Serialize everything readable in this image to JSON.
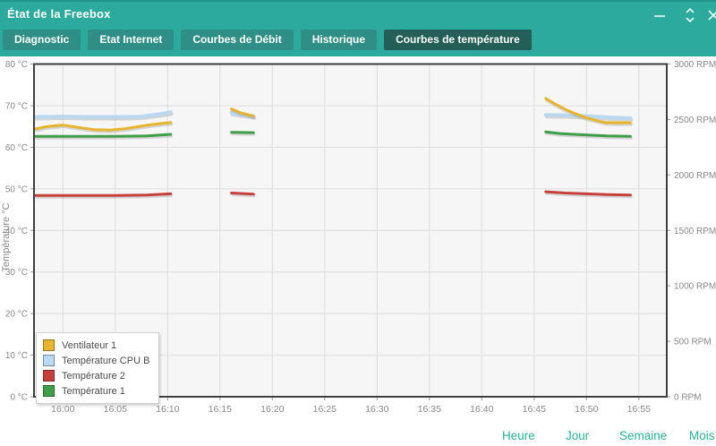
{
  "window": {
    "title": "État de la Freebox",
    "controls": [
      {
        "id": "minimize-icon",
        "glyph": "minus"
      },
      {
        "id": "collapse-expand-icon",
        "glyph": "chevrons-up-down"
      },
      {
        "id": "close-icon",
        "glyph": "cross",
        "partially_visible": true
      }
    ]
  },
  "tabs": [
    {
      "id": "diagnostic",
      "label": "Diagnostic",
      "active": false
    },
    {
      "id": "etat-internet",
      "label": "Etat Internet",
      "active": false
    },
    {
      "id": "courbes-de-debit",
      "label": "Courbes de Débit",
      "active": false
    },
    {
      "id": "historique",
      "label": "Historique",
      "active": false
    },
    {
      "id": "courbes-de-temperature",
      "label": "Courbes de température",
      "active": true
    }
  ],
  "colors": {
    "header_teal": "#2caa9d",
    "tab_inactive": "#2f8f86",
    "tab_active": "#235e57",
    "link_teal": "#2fae9f",
    "plot_background": "#f6f6f6",
    "gridline": "#dcdcdc",
    "plot_border": "#3f3f3f",
    "axis_text": "#8a8a8a"
  },
  "footer": {
    "links": [
      {
        "id": "heure",
        "label": "Heure"
      },
      {
        "id": "jour",
        "label": "Jour"
      },
      {
        "id": "semaine",
        "label": "Semaine"
      },
      {
        "id": "mois",
        "label": "Mois"
      }
    ]
  },
  "chart_data": {
    "type": "line",
    "title": "",
    "x_axis": {
      "unit": "time",
      "tick_labels": [
        "16:00",
        "16:05",
        "16:10",
        "16:15",
        "16:20",
        "16:25",
        "16:30",
        "16:35",
        "16:40",
        "16:45",
        "16:50",
        "16:55"
      ],
      "tick_minutes": [
        0,
        5,
        10,
        15,
        20,
        25,
        30,
        35,
        40,
        45,
        50,
        55
      ],
      "range_minutes": [
        -2.8,
        57.7
      ]
    },
    "y_left": {
      "label": "Température °C",
      "min": 0,
      "max": 80,
      "step": 10,
      "tick_suffix": " °C",
      "tick_labels": [
        "0 °C",
        "10 °C",
        "20 °C",
        "30 °C",
        "40 °C",
        "50 °C",
        "60 °C",
        "70 °C",
        "80 °C"
      ]
    },
    "y_right": {
      "label": "RPM",
      "min": 0,
      "max": 3000,
      "step": 500,
      "tick_suffix": " RPM",
      "tick_labels": [
        "0 RPM",
        "500 RPM",
        "1000 RPM",
        "1500 RPM",
        "2000 RPM",
        "2500 RPM",
        "3000 RPM"
      ]
    },
    "grid": {
      "vertical": true,
      "horizontal": true
    },
    "draw_order": [
      1,
      3,
      2,
      0
    ],
    "series": [
      {
        "name": "Ventilateur 1",
        "color": "#e7b42f",
        "axis": "right",
        "unit": "RPM",
        "width": 3,
        "segments": [
          [
            [
              -2.6,
              2415
            ],
            [
              -1.5,
              2437
            ],
            [
              0,
              2450
            ],
            [
              1.5,
              2428
            ],
            [
              3,
              2408
            ],
            [
              4.5,
              2405
            ],
            [
              6,
              2418
            ],
            [
              8,
              2448
            ],
            [
              9.5,
              2465
            ],
            [
              10.3,
              2472
            ]
          ],
          [
            [
              16.1,
              2595
            ],
            [
              17,
              2560
            ],
            [
              18.2,
              2530
            ]
          ],
          [
            [
              46.1,
              2690
            ],
            [
              47,
              2640
            ],
            [
              48,
              2590
            ],
            [
              49,
              2550
            ],
            [
              50,
              2515
            ],
            [
              51,
              2490
            ],
            [
              51.8,
              2472
            ],
            [
              53,
              2470
            ],
            [
              54.2,
              2470
            ]
          ]
        ]
      },
      {
        "name": "Température CPU B",
        "color": "#b9d9f3",
        "axis": "left",
        "unit": "°C",
        "width": 4,
        "segments": [
          [
            [
              -2.6,
              67.3
            ],
            [
              0,
              67.4
            ],
            [
              2,
              67.3
            ],
            [
              4,
              67.3
            ],
            [
              6,
              67.3
            ],
            [
              7.5,
              67.4
            ],
            [
              9,
              67.9
            ],
            [
              10.3,
              68.4
            ]
          ],
          [
            [
              16.1,
              68.3
            ],
            [
              17,
              67.9
            ],
            [
              18.2,
              67.5
            ]
          ],
          [
            [
              46.1,
              67.8
            ],
            [
              48,
              67.7
            ],
            [
              50,
              67.5
            ],
            [
              52,
              67.2
            ],
            [
              54.2,
              67.0
            ]
          ]
        ]
      },
      {
        "name": "Température 2",
        "color": "#c6403c",
        "axis": "left",
        "unit": "°C",
        "width": 3,
        "segments": [
          [
            [
              -2.6,
              48.4
            ],
            [
              2,
              48.4
            ],
            [
              5,
              48.4
            ],
            [
              8,
              48.5
            ],
            [
              10.3,
              48.8
            ]
          ],
          [
            [
              16.1,
              49.0
            ],
            [
              18.2,
              48.7
            ]
          ],
          [
            [
              46.1,
              49.3
            ],
            [
              48,
              49.0
            ],
            [
              50,
              48.8
            ],
            [
              52,
              48.6
            ],
            [
              54.2,
              48.5
            ]
          ]
        ]
      },
      {
        "name": "Température 1",
        "color": "#3f9f48",
        "axis": "left",
        "unit": "°C",
        "width": 3,
        "segments": [
          [
            [
              -2.6,
              62.6
            ],
            [
              2,
              62.6
            ],
            [
              5,
              62.6
            ],
            [
              8,
              62.7
            ],
            [
              10.3,
              63.1
            ]
          ],
          [
            [
              16.1,
              63.6
            ],
            [
              18.2,
              63.5
            ]
          ],
          [
            [
              46.1,
              63.7
            ],
            [
              47.5,
              63.3
            ],
            [
              49.5,
              63.0
            ],
            [
              52,
              62.7
            ],
            [
              54.2,
              62.6
            ]
          ]
        ]
      }
    ],
    "legend": {
      "position": "bottom-left",
      "entries": [
        "Ventilateur 1",
        "Température CPU B",
        "Température 2",
        "Température 1"
      ]
    }
  }
}
